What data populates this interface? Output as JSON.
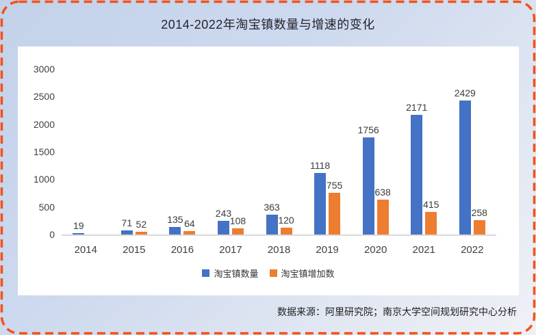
{
  "frame": {
    "border_color": "#F2511B",
    "background_top": "#C3D2EA",
    "background_bottom": "#EFF1F6",
    "card_color": "#FFFFFF"
  },
  "title": "2014-2022年淘宝镇数量与增速的变化",
  "source_note": "数据来源：阿里研究院；南京大学空间规划研究中心分析",
  "legend": [
    {
      "label": "淘宝镇数量",
      "color": "#4472C4"
    },
    {
      "label": "淘宝镇增加数",
      "color": "#ED7D31"
    }
  ],
  "chart_data": {
    "type": "bar",
    "title": "2014-2022年淘宝镇数量与增速的变化",
    "categories": [
      "2014",
      "2015",
      "2016",
      "2017",
      "2018",
      "2019",
      "2020",
      "2021",
      "2022"
    ],
    "series": [
      {
        "name": "淘宝镇数量",
        "color": "#4472C4",
        "values": [
          19,
          71,
          135,
          243,
          363,
          1118,
          1756,
          2171,
          2429
        ]
      },
      {
        "name": "淘宝镇增加数",
        "color": "#ED7D31",
        "values": [
          null,
          52,
          64,
          108,
          120,
          755,
          638,
          415,
          258
        ]
      }
    ],
    "xlabel": "",
    "ylabel": "",
    "ylim": [
      0,
      3000
    ],
    "yticks": [
      0,
      500,
      1000,
      1500,
      2000,
      2500,
      3000
    ],
    "grid": false,
    "data_labels": true,
    "legend_position": "bottom",
    "axis_line_color": "#D9D9D9",
    "label_color": "#3A3A3A"
  }
}
